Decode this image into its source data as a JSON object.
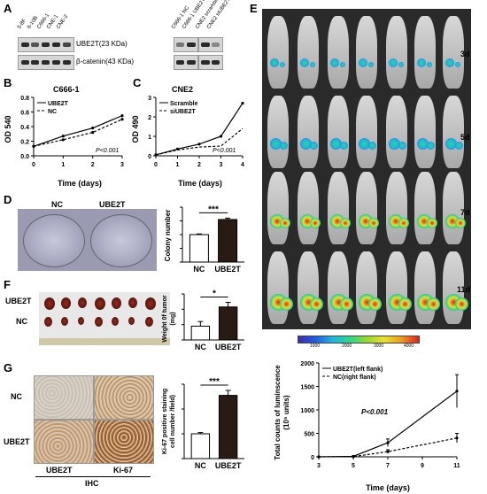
{
  "panels": {
    "A": "A",
    "B": "B",
    "C": "C",
    "D": "D",
    "E": "E",
    "F": "F",
    "G": "G"
  },
  "panel_a": {
    "lanes_left": [
      "5-8F",
      "6-10B",
      "C666-1",
      "CNE-1",
      "CNE-2"
    ],
    "lanes_right": [
      "C666-1 NC",
      "C666-1 UBE2T",
      "CNE2 scramble",
      "CNE2 siUBE2T"
    ],
    "row1_label": "UBE2T(23 KDa)",
    "row2_label": "β-catenin(43 KDa)"
  },
  "panel_e": {
    "days": [
      "3d",
      "5d",
      "7d",
      "11d"
    ],
    "colorbar_ticks": [
      "1000",
      "2000",
      "3000",
      "4000"
    ]
  },
  "panel_d": {
    "nc_label": "NC",
    "ube2t_label": "UBE2T"
  },
  "panel_f": {
    "row1": "UBE2T",
    "row2": "NC"
  },
  "panel_g": {
    "row_nc": "NC",
    "row_ube2t": "UBE2T",
    "col1": "UBE2T",
    "col2": "Ki-67",
    "ihc": "IHC"
  },
  "chart_data": [
    {
      "id": "B",
      "type": "line",
      "title": "C666-1",
      "xlabel": "Time (days)",
      "ylabel": "OD 540",
      "x": [
        0,
        1,
        2,
        3
      ],
      "xlim": [
        0,
        3
      ],
      "ylim": [
        0,
        0.8
      ],
      "xticks": [
        "0",
        "1",
        "2",
        "3"
      ],
      "yticks": [
        "0.0",
        "0.2",
        "0.4",
        "0.6",
        "0.8"
      ],
      "series": [
        {
          "name": "UBE2T",
          "values": [
            0.13,
            0.27,
            0.38,
            0.55
          ]
        },
        {
          "name": "NC",
          "values": [
            0.13,
            0.22,
            0.32,
            0.5
          ]
        }
      ],
      "annotation": "P<0.001",
      "legend": "top-left"
    },
    {
      "id": "C",
      "type": "line",
      "title": "CNE2",
      "xlabel": "Time (days)",
      "ylabel": "OD 490",
      "x": [
        0,
        1,
        2,
        3,
        4
      ],
      "xlim": [
        0,
        4
      ],
      "ylim": [
        0,
        3
      ],
      "xticks": [
        "0",
        "1",
        "2",
        "3",
        "4"
      ],
      "yticks": [
        "0",
        "1",
        "2",
        "3"
      ],
      "series": [
        {
          "name": "Scramble",
          "values": [
            0.05,
            0.35,
            0.6,
            1.0,
            2.7
          ]
        },
        {
          "name": "siUBE2T",
          "values": [
            0.05,
            0.3,
            0.45,
            0.5,
            1.4
          ]
        }
      ],
      "annotation": "P<0.001",
      "legend": "top-left"
    },
    {
      "id": "D",
      "type": "bar",
      "ylabel": "Colony number",
      "categories": [
        "NC",
        "UBE2T"
      ],
      "values": [
        40,
        62
      ],
      "errors": [
        1,
        2
      ],
      "ylim": [
        0,
        80
      ],
      "yticks": [
        "0",
        "20",
        "40",
        "60",
        "80"
      ],
      "significance": "***"
    },
    {
      "id": "F",
      "type": "bar",
      "ylabel": "Weight 0f tumor (mg)",
      "categories": [
        "NC",
        "UBE2T"
      ],
      "values": [
        180,
        430
      ],
      "errors": [
        60,
        60
      ],
      "ylim": [
        0,
        600
      ],
      "yticks": [
        "0",
        "200",
        "400",
        "600"
      ],
      "significance": "*"
    },
    {
      "id": "G",
      "type": "bar",
      "ylabel": "Ki-67 positive staining cell number /field)",
      "categories": [
        "NC",
        "UBE2T"
      ],
      "values": [
        200,
        510
      ],
      "errors": [
        10,
        40
      ],
      "ylim": [
        0,
        600
      ],
      "yticks": [
        "0",
        "200",
        "400",
        "600"
      ],
      "significance": "***"
    },
    {
      "id": "E",
      "type": "line",
      "ylabel": "Total counts of luminscence (10⁵ units)",
      "xlabel": "Time (days)",
      "x": [
        3,
        5,
        7,
        11
      ],
      "xlim": [
        3,
        11
      ],
      "ylim": [
        0,
        2000
      ],
      "xticks": [
        "3",
        "5",
        "7",
        "9",
        "11"
      ],
      "yticks": [
        "0",
        "500",
        "1000",
        "1500",
        "2000"
      ],
      "series": [
        {
          "name": "UBE2T(left flank)",
          "values": [
            0,
            10,
            300,
            1400
          ],
          "errors": [
            0,
            5,
            80,
            350
          ]
        },
        {
          "name": "NC(right flank)",
          "values": [
            0,
            5,
            110,
            400
          ],
          "errors": [
            0,
            3,
            40,
            100
          ]
        }
      ],
      "annotation": "P<0.001",
      "legend": "top-left"
    }
  ]
}
